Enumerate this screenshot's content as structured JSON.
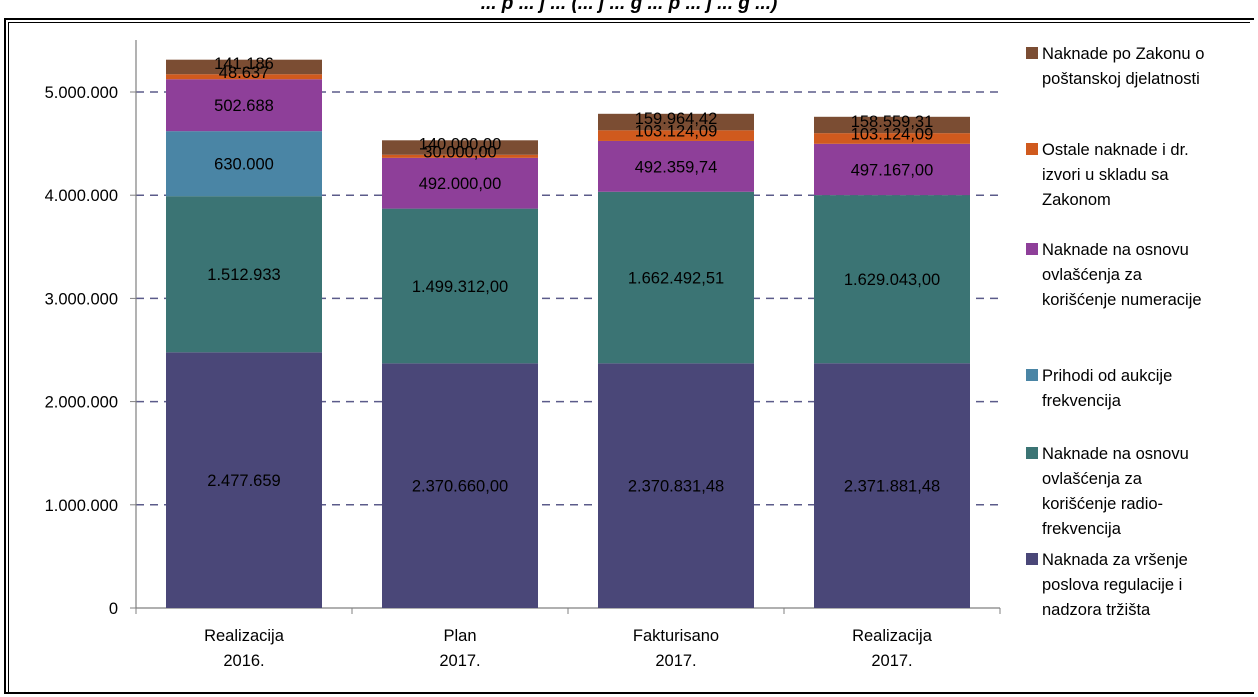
{
  "header": {
    "title_fragment": "... p ... j ... (... j ... g ... p ... j ... g ...)"
  },
  "chart_data": {
    "type": "bar",
    "stacked": true,
    "categories": [
      "Realizacija 2016.",
      "Plan 2017.",
      "Fakturisano 2017.",
      "Realizacija 2017."
    ],
    "category_lines": [
      [
        "Realizacija",
        "2016."
      ],
      [
        "Plan",
        "2017."
      ],
      [
        "Fakturisano",
        "2017."
      ],
      [
        "Realizacija",
        "2017."
      ]
    ],
    "ylim": [
      0,
      5000000
    ],
    "yticks": [
      0,
      1000000,
      2000000,
      3000000,
      4000000,
      5000000
    ],
    "ytick_labels": [
      "0",
      "1.000.000",
      "2.000.000",
      "3.000.000",
      "4.000.000",
      "5.000.000"
    ],
    "grid": "horizontal dashed",
    "legend_position": "right",
    "series": [
      {
        "name": "Naknada  za vršenje poslova regulacije i nadzora tržišta",
        "color": "#4a4778",
        "values": [
          2477659,
          2370660.0,
          2370831.48,
          2371881.48
        ],
        "labels": [
          "2.477.659",
          "2.370.660,00",
          "2.370.831,48",
          "2.371.881,48"
        ]
      },
      {
        "name": "Naknade na osnovu ovlašćenja za korišćenje radio-frekvencija",
        "color": "#3b7474",
        "values": [
          1512933,
          1499312.0,
          1662492.51,
          1629043.0
        ],
        "labels": [
          "1.512.933",
          "1.499.312,00",
          "1.662.492,51",
          "1.629.043,00"
        ]
      },
      {
        "name": "Prihodi od aukcije frekvencija",
        "color": "#4a85a5",
        "values": [
          630000,
          0,
          0,
          0
        ],
        "labels": [
          "630.000",
          "",
          "",
          ""
        ]
      },
      {
        "name": "Naknade na osnovu ovlašćenja za korišćenje numeracije",
        "color": "#8e3f99",
        "values": [
          502688,
          492000.0,
          492359.74,
          497167.0
        ],
        "labels": [
          "502.688",
          "492.000,00",
          "492.359,74",
          "497.167,00"
        ]
      },
      {
        "name": "Ostale naknade i dr. izvori u skladu sa Zakonom",
        "color": "#d05a1e",
        "values": [
          48637,
          30000.0,
          103124.09,
          103124.09
        ],
        "labels": [
          "48.637",
          "30.000,00",
          "103.124,09",
          "103.124,09"
        ]
      },
      {
        "name": "Naknade po Zakonu o poštanskoj djelatnosti",
        "color": "#7b4d33",
        "values": [
          141186,
          140000.0,
          159964.42,
          158559.31
        ],
        "labels": [
          "141.186",
          "140.000,00",
          "159.964,42",
          "158.559,31"
        ]
      }
    ],
    "legend": [
      {
        "series_index": 5,
        "lines": [
          "Naknade po Zakonu o",
          "poštanskoj djelatnosti"
        ]
      },
      {
        "series_index": 4,
        "lines": [
          "Ostale naknade i dr.",
          "izvori u skladu sa",
          "Zakonom"
        ]
      },
      {
        "series_index": 3,
        "lines": [
          "Naknade na osnovu",
          "ovlašćenja za",
          "korišćenje numeracije"
        ]
      },
      {
        "series_index": 2,
        "lines": [
          "Prihodi od aukcije",
          "frekvencija"
        ]
      },
      {
        "series_index": 1,
        "lines": [
          "Naknade na osnovu",
          "ovlašćenja za",
          "korišćenje radio-",
          "frekvencija"
        ]
      },
      {
        "series_index": 0,
        "lines": [
          "Naknada  za vršenje",
          "poslova regulacije i",
          "nadzora tržišta"
        ]
      }
    ]
  }
}
